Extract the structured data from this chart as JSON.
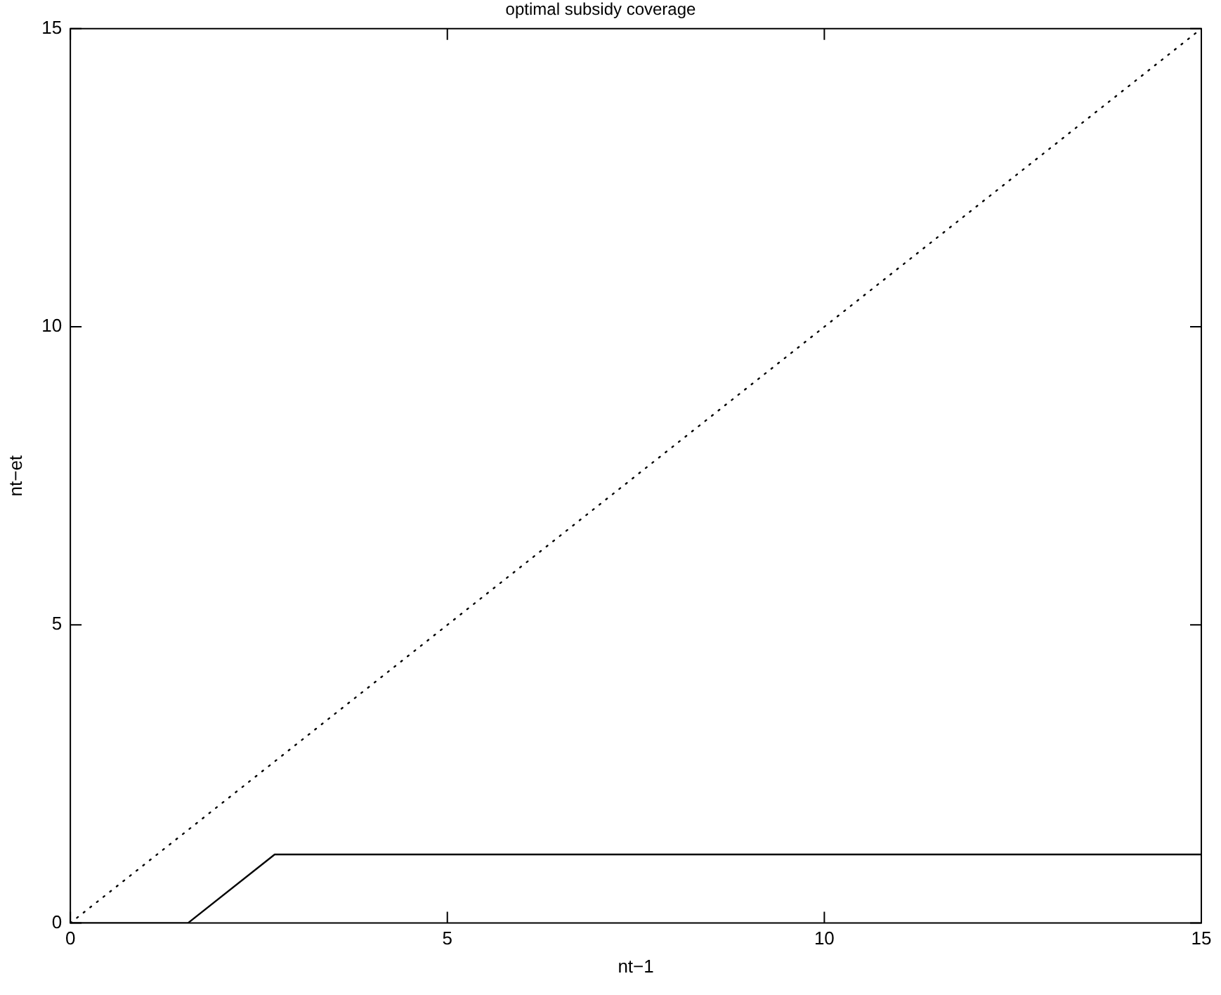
{
  "chart_data": {
    "type": "line",
    "title": "optimal subsidy coverage",
    "xlabel": "nt−1",
    "ylabel": "nt−et",
    "series": [
      {
        "color": "#000000",
        "x": [
          0,
          1.56,
          2.71,
          15
        ],
        "values": [
          0,
          0,
          1.15,
          1.15
        ],
        "line_style": "solid"
      },
      {
        "color": "#000000",
        "x": [
          0,
          15
        ],
        "values": [
          0,
          15
        ],
        "line_style": "dotted"
      }
    ],
    "xlim": [
      0,
      15
    ],
    "xticks": [
      0,
      5,
      10,
      15
    ],
    "ylim": [
      0,
      15
    ],
    "yticks": [
      0,
      5,
      10,
      15
    ],
    "grid": false,
    "legend": false,
    "marker": "none"
  }
}
